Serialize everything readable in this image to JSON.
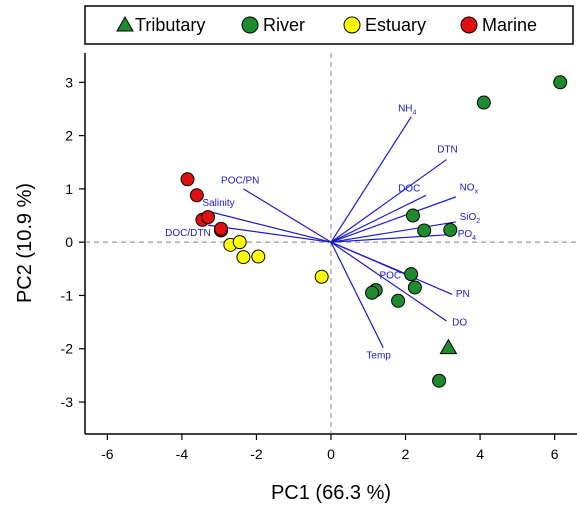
{
  "chart_data": {
    "type": "scatter",
    "title": "",
    "xlabel": "PC1 (66.3 %)",
    "ylabel": "PC2 (10.9 %)",
    "xlim": [
      -6.6,
      6.6
    ],
    "ylim": [
      -3.6,
      3.55
    ],
    "xticks": [
      "-6",
      "-4",
      "-2",
      "0",
      "2",
      "4",
      "6"
    ],
    "yticks": [
      "3",
      "2",
      "1",
      "0",
      "-1",
      "-2",
      "-3"
    ],
    "legend_position": "top",
    "legend": [
      {
        "name": "Tributary",
        "marker": "triangle",
        "color": "#1e8c2e"
      },
      {
        "name": "River",
        "marker": "circle",
        "color": "#1e8c2e"
      },
      {
        "name": "Estuary",
        "marker": "circle",
        "color": "#ffff00"
      },
      {
        "name": "Marine",
        "marker": "circle",
        "color": "#e01010"
      }
    ],
    "series": [
      {
        "name": "Tributary",
        "marker": "triangle",
        "color": "#1e8c2e",
        "points": [
          [
            3.15,
            -1.98
          ]
        ]
      },
      {
        "name": "River",
        "marker": "circle",
        "color": "#1e8c2e",
        "points": [
          [
            6.15,
            3.0
          ],
          [
            4.1,
            2.62
          ],
          [
            2.2,
            0.5
          ],
          [
            2.5,
            0.22
          ],
          [
            3.2,
            0.23
          ],
          [
            2.15,
            -0.6
          ],
          [
            2.25,
            -0.85
          ],
          [
            1.2,
            -0.9
          ],
          [
            1.1,
            -0.95
          ],
          [
            1.8,
            -1.1
          ],
          [
            2.9,
            -2.6
          ]
        ]
      },
      {
        "name": "Estuary",
        "marker": "circle",
        "color": "#ffff00",
        "points": [
          [
            -2.7,
            -0.05
          ],
          [
            -2.45,
            0.0
          ],
          [
            -2.35,
            -0.28
          ],
          [
            -1.95,
            -0.27
          ],
          [
            -0.25,
            -0.65
          ]
        ]
      },
      {
        "name": "Marine",
        "marker": "circle",
        "color": "#e01010",
        "points": [
          [
            -3.85,
            1.18
          ],
          [
            -3.6,
            0.88
          ],
          [
            -3.45,
            0.42
          ],
          [
            -3.3,
            0.47
          ],
          [
            -2.95,
            0.22
          ],
          [
            -2.95,
            0.25
          ]
        ]
      }
    ],
    "loadings": [
      {
        "label": "NH",
        "sub": "4",
        "x": 2.15,
        "y": 2.35,
        "lx": 1.8,
        "ly": 2.45
      },
      {
        "label": "DTN",
        "sub": "",
        "x": 3.1,
        "y": 1.55,
        "lx": 2.85,
        "ly": 1.68
      },
      {
        "label": "DOC",
        "sub": "",
        "x": 2.55,
        "y": 0.88,
        "lx": 1.8,
        "ly": 0.95
      },
      {
        "label": "NO",
        "sub": "x",
        "x": 3.35,
        "y": 0.85,
        "lx": 3.45,
        "ly": 0.97
      },
      {
        "label": "SiO",
        "sub": "2",
        "x": 3.35,
        "y": 0.38,
        "lx": 3.45,
        "ly": 0.42
      },
      {
        "label": "PO",
        "sub": "4",
        "x": 3.35,
        "y": 0.15,
        "lx": 3.4,
        "ly": 0.1
      },
      {
        "label": "POC",
        "sub": "",
        "x": 2.3,
        "y": -0.68,
        "lx": 1.3,
        "ly": -0.68
      },
      {
        "label": "PN",
        "sub": "",
        "x": 3.25,
        "y": -0.98,
        "lx": 3.35,
        "ly": -1.03
      },
      {
        "label": "DO",
        "sub": "",
        "x": 3.1,
        "y": -1.48,
        "lx": 3.25,
        "ly": -1.56
      },
      {
        "label": "Temp",
        "sub": "",
        "x": 1.4,
        "y": -1.98,
        "lx": 0.95,
        "ly": -2.18
      },
      {
        "label": "POC/PN",
        "sub": "",
        "x": -2.35,
        "y": 1.0,
        "lx": -2.95,
        "ly": 1.1
      },
      {
        "label": "Salinity",
        "sub": "",
        "x": -3.3,
        "y": 0.58,
        "lx": -3.45,
        "ly": 0.68
      },
      {
        "label": "DOC/DTN",
        "sub": "",
        "x": -3.3,
        "y": 0.32,
        "lx": -4.45,
        "ly": 0.12
      }
    ]
  }
}
